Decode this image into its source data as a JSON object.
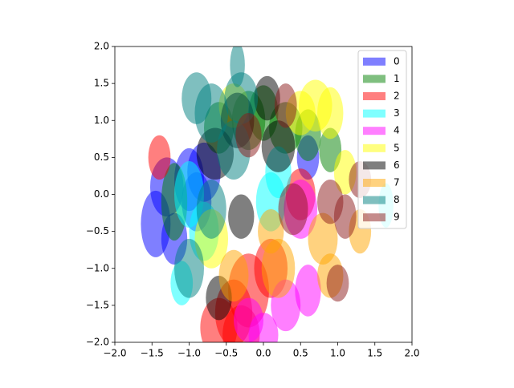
{
  "chart_data": {
    "type": "scatter",
    "alpha": 0.5,
    "legend": "upper right",
    "xlim": [
      -2,
      2
    ],
    "ylim": [
      -2,
      2
    ],
    "xticks": [
      {
        "value": -2,
        "label": "−2.0"
      },
      {
        "value": -1.5,
        "label": "−1.5"
      },
      {
        "value": -1,
        "label": "−1.0"
      },
      {
        "value": -0.5,
        "label": "−0.5"
      },
      {
        "value": 0,
        "label": "0.0"
      },
      {
        "value": 0.5,
        "label": "0.5"
      },
      {
        "value": 1,
        "label": "1.0"
      },
      {
        "value": 1.5,
        "label": "1.5"
      },
      {
        "value": 2,
        "label": "2.0"
      }
    ],
    "yticks": [
      {
        "value": -2,
        "label": "−2.0"
      },
      {
        "value": -1.5,
        "label": "−1.5"
      },
      {
        "value": -1,
        "label": "−1.0"
      },
      {
        "value": -0.5,
        "label": "−0.5"
      },
      {
        "value": 0,
        "label": "0.0"
      },
      {
        "value": 0.5,
        "label": "0.5"
      },
      {
        "value": 1,
        "label": "1.0"
      },
      {
        "value": 1.5,
        "label": "1.5"
      },
      {
        "value": 2,
        "label": "2.0"
      }
    ],
    "series": [
      {
        "name": "0",
        "color": "#0000ff",
        "x": [
          -1.45,
          -1.3,
          -1.0,
          -0.8,
          -1.2,
          0.6,
          -0.9
        ],
        "y": [
          -0.4,
          0.1,
          0.2,
          0.3,
          -0.6,
          0.5,
          -0.1
        ],
        "width": [
          0.4,
          0.45,
          0.4,
          0.45,
          0.35,
          0.3,
          0.4
        ],
        "height": [
          0.9,
          0.8,
          0.85,
          0.8,
          0.7,
          0.6,
          0.8
        ]
      },
      {
        "name": "1",
        "color": "#008000",
        "x": [
          -0.2,
          0.0,
          0.3,
          -1.2,
          0.6,
          0.9,
          -0.6
        ],
        "y": [
          1.0,
          1.1,
          0.9,
          -0.1,
          0.8,
          0.6,
          0.9
        ],
        "width": [
          0.45,
          0.4,
          0.45,
          0.35,
          0.35,
          0.3,
          0.4
        ],
        "height": [
          0.8,
          0.75,
          0.7,
          1.05,
          0.7,
          0.6,
          0.7
        ]
      },
      {
        "name": "2",
        "color": "#ff0000",
        "x": [
          -0.4,
          -0.2,
          -1.4,
          0.5,
          -0.6,
          0.1,
          -0.3
        ],
        "y": [
          -1.6,
          -1.3,
          0.5,
          0.0,
          -1.8,
          -1.0,
          -1.9
        ],
        "width": [
          0.5,
          0.55,
          0.3,
          0.4,
          0.5,
          0.45,
          0.5
        ],
        "height": [
          0.9,
          1.0,
          0.6,
          0.7,
          0.8,
          0.8,
          0.8
        ]
      },
      {
        "name": "3",
        "color": "#00ffff",
        "x": [
          0.1,
          -1.1,
          -0.8,
          1.65,
          -1.0,
          0.2
        ],
        "y": [
          -0.1,
          -1.2,
          -0.5,
          -0.15,
          0.0,
          0.3
        ],
        "width": [
          0.4,
          0.3,
          0.4,
          0.2,
          0.4,
          0.35
        ],
        "height": [
          0.8,
          0.6,
          0.8,
          0.6,
          0.9,
          0.7
        ]
      },
      {
        "name": "4",
        "color": "#ff00ff",
        "x": [
          0.3,
          0.5,
          0.0,
          0.6,
          -0.2
        ],
        "y": [
          -1.5,
          -0.2,
          -1.9,
          -1.3,
          -1.7
        ],
        "width": [
          0.4,
          0.45,
          0.4,
          0.35,
          0.4
        ],
        "height": [
          0.7,
          0.8,
          0.6,
          0.7,
          0.6
        ]
      },
      {
        "name": "5",
        "color": "#ffff00",
        "x": [
          0.7,
          0.5,
          -0.7,
          1.1,
          0.9,
          -0.4
        ],
        "y": [
          1.2,
          1.1,
          -0.6,
          0.3,
          1.1,
          1.2
        ],
        "width": [
          0.45,
          0.4,
          0.45,
          0.3,
          0.35,
          0.4
        ],
        "height": [
          0.7,
          0.6,
          0.8,
          0.6,
          0.7,
          0.6
        ]
      },
      {
        "name": "6",
        "color": "#000000",
        "x": [
          -0.35,
          0.2,
          -0.65,
          -0.3,
          0.05,
          -0.6
        ],
        "y": [
          1.0,
          0.65,
          0.55,
          -0.3,
          1.3,
          -1.4
        ],
        "width": [
          0.45,
          0.45,
          0.5,
          0.35,
          0.35,
          0.35
        ],
        "height": [
          0.75,
          0.7,
          0.7,
          0.6,
          0.6,
          0.6
        ]
      },
      {
        "name": "7",
        "color": "#ffa500",
        "x": [
          0.2,
          0.8,
          1.3,
          -0.4,
          0.9,
          0.1
        ],
        "y": [
          -1.0,
          -0.6,
          -0.5,
          -1.1,
          -1.1,
          -0.5
        ],
        "width": [
          0.45,
          0.4,
          0.3,
          0.4,
          0.35,
          0.35
        ],
        "height": [
          0.8,
          0.7,
          0.6,
          0.7,
          0.6,
          0.6
        ]
      },
      {
        "name": "8",
        "color": "#008080",
        "x": [
          -0.35,
          -0.7,
          -0.9,
          -0.4,
          -1.0,
          -0.7,
          -0.3
        ],
        "y": [
          1.75,
          1.1,
          1.3,
          0.6,
          -1.0,
          -0.2,
          1.3
        ],
        "width": [
          0.2,
          0.45,
          0.4,
          0.45,
          0.4,
          0.4,
          0.45
        ],
        "height": [
          0.6,
          0.8,
          0.7,
          0.8,
          0.8,
          0.8,
          0.7
        ]
      },
      {
        "name": "9",
        "color": "#8b1a1a",
        "x": [
          0.3,
          1.1,
          0.9,
          0.4,
          1.3,
          -0.2,
          1.0
        ],
        "y": [
          1.2,
          -0.3,
          -0.1,
          -0.2,
          0.2,
          0.8,
          -1.2
        ],
        "width": [
          0.3,
          0.3,
          0.35,
          0.4,
          0.3,
          0.35,
          0.3
        ],
        "height": [
          0.6,
          0.6,
          0.6,
          0.7,
          0.5,
          0.6,
          0.5
        ]
      }
    ]
  }
}
